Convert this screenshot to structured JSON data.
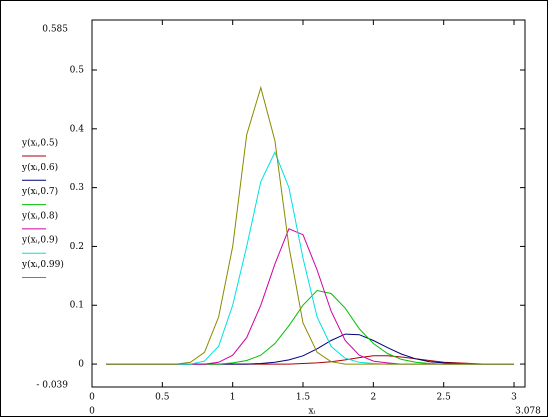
{
  "chart_data": {
    "type": "line",
    "x_label": "xᵢ",
    "x": [
      0.1,
      0.2,
      0.3,
      0.4,
      0.5,
      0.6,
      0.7,
      0.8,
      0.9,
      1.0,
      1.1,
      1.2,
      1.3,
      1.4,
      1.5,
      1.6,
      1.7,
      1.8,
      1.9,
      2.0,
      2.1,
      2.2,
      2.3,
      2.4,
      2.5,
      2.6,
      2.7,
      2.8,
      2.9,
      3.0
    ],
    "series": [
      {
        "name": "y(xᵢ,0.5)",
        "color": "#aa0000",
        "values": [
          0,
          0,
          0,
          0,
          0,
          0,
          0,
          0,
          0,
          0,
          0,
          0,
          0,
          0,
          0.001,
          0.002,
          0.004,
          0.007,
          0.011,
          0.014,
          0.014,
          0.012,
          0.009,
          0.006,
          0.003,
          0.002,
          0.001,
          0,
          0,
          0
        ]
      },
      {
        "name": "y(xᵢ,0.6)",
        "color": "#000080",
        "values": [
          0,
          0,
          0,
          0,
          0,
          0,
          0,
          0,
          0,
          0,
          0,
          0.001,
          0.003,
          0.007,
          0.014,
          0.026,
          0.04,
          0.051,
          0.05,
          0.04,
          0.028,
          0.017,
          0.009,
          0.004,
          0.002,
          0.001,
          0,
          0,
          0,
          0
        ]
      },
      {
        "name": "y(xᵢ,0.7)",
        "color": "#00c000",
        "values": [
          0,
          0,
          0,
          0,
          0,
          0,
          0,
          0,
          0,
          0.002,
          0.006,
          0.015,
          0.035,
          0.065,
          0.1,
          0.125,
          0.12,
          0.095,
          0.06,
          0.035,
          0.018,
          0.008,
          0.003,
          0.001,
          0,
          0,
          0,
          0,
          0,
          0
        ]
      },
      {
        "name": "y(xᵢ,0.8)",
        "color": "#d000a0",
        "values": [
          0,
          0,
          0,
          0,
          0,
          0,
          0,
          0,
          0.003,
          0.015,
          0.045,
          0.1,
          0.17,
          0.23,
          0.22,
          0.16,
          0.09,
          0.04,
          0.015,
          0.005,
          0.002,
          0,
          0,
          0,
          0,
          0,
          0,
          0,
          0,
          0
        ]
      },
      {
        "name": "y(xᵢ,0.9)",
        "color": "#00e0e0",
        "values": [
          0,
          0,
          0,
          0,
          0,
          0,
          0,
          0.005,
          0.03,
          0.1,
          0.2,
          0.31,
          0.36,
          0.3,
          0.18,
          0.08,
          0.03,
          0.01,
          0.003,
          0.001,
          0,
          0,
          0,
          0,
          0,
          0,
          0,
          0,
          0,
          0
        ]
      },
      {
        "name": "y(xᵢ,0.99)",
        "color": "#8a8a00",
        "values": [
          0,
          0,
          0,
          0,
          0,
          0,
          0.003,
          0.02,
          0.08,
          0.2,
          0.39,
          0.47,
          0.38,
          0.2,
          0.07,
          0.02,
          0.004,
          0,
          0,
          0,
          0,
          0,
          0,
          0,
          0,
          0,
          0,
          0,
          0,
          0
        ]
      }
    ],
    "xlim": [
      0,
      3.078
    ],
    "ylim": [
      -0.039,
      0.585
    ],
    "ylim_labels": [
      "- 0.039",
      "0.585"
    ],
    "xticks": [
      0,
      0.5,
      1,
      1.5,
      2,
      2.5,
      3
    ],
    "yticks": [
      0,
      0.1,
      0.2,
      0.3,
      0.4,
      0.5
    ]
  }
}
